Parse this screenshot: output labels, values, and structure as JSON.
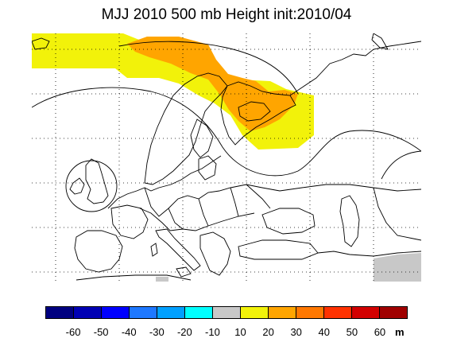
{
  "title": "MJJ 2010 500 mb Height init:2010/04",
  "map": {
    "region": "Europe",
    "colors": {
      "land_stroke": "#000000",
      "background": "#ffffff",
      "anomaly_10_20": "#f2f20a",
      "anomaly_20_30": "#ffa500",
      "anomaly_neg10_10": "#c8c8c8",
      "contour": "#000000"
    }
  },
  "legend": {
    "levels": [
      "-60",
      "-50",
      "-40",
      "-30",
      "-20",
      "-10",
      "10",
      "20",
      "30",
      "40",
      "50",
      "60"
    ],
    "unit": "m",
    "colors": [
      "#000080",
      "#0000b4",
      "#0000ff",
      "#1e78ff",
      "#00a0ff",
      "#00ffff",
      "#c8c8c8",
      "#f2f20a",
      "#ffa500",
      "#ff7800",
      "#ff3200",
      "#d20000",
      "#a00000"
    ]
  }
}
